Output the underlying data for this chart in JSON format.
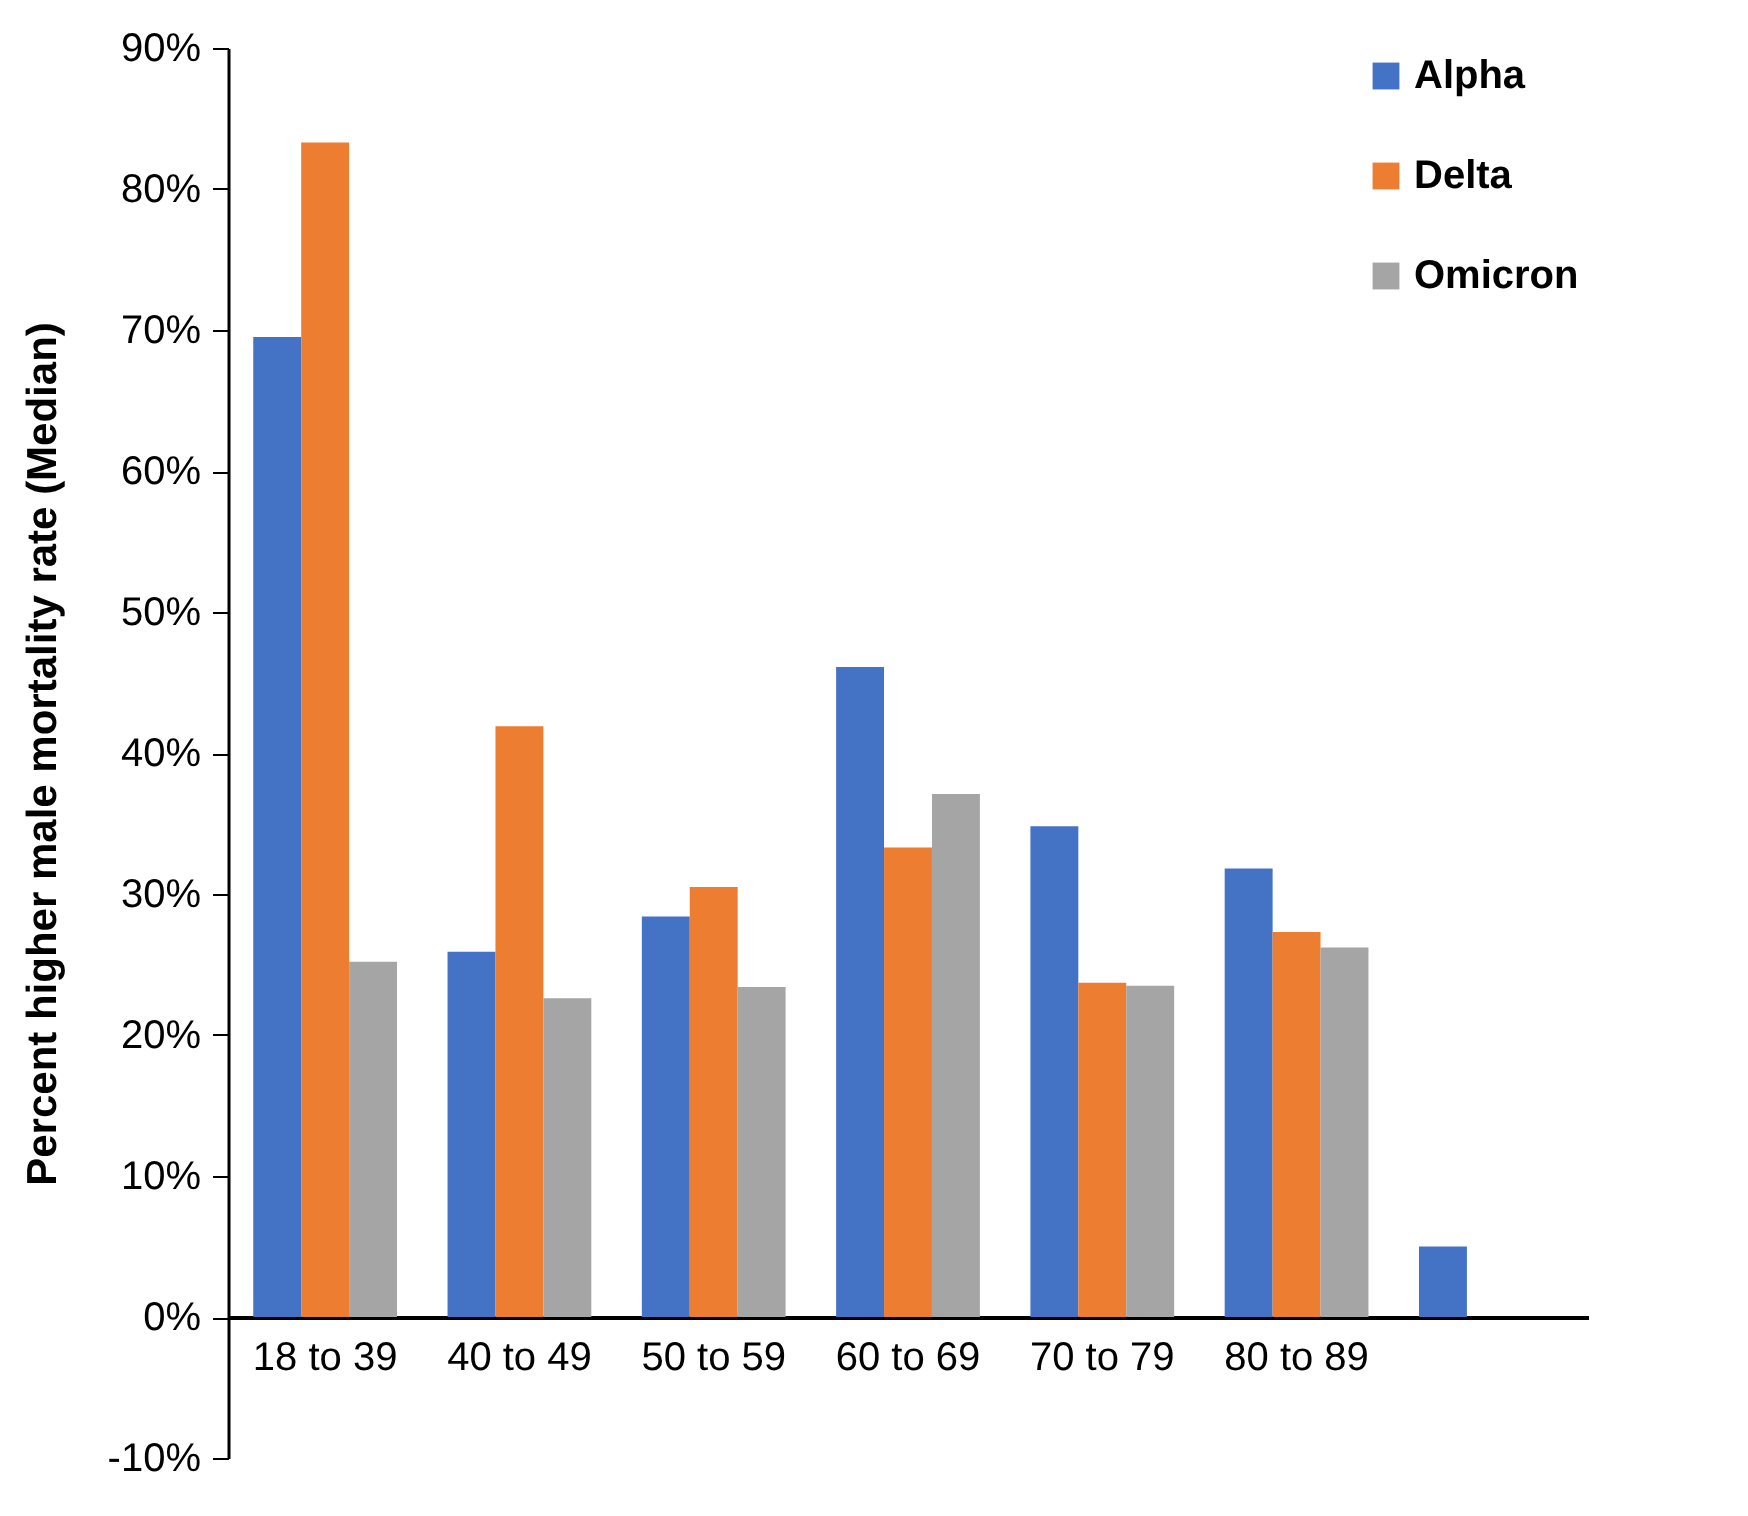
{
  "chart_data": {
    "type": "bar",
    "ylabel": "Percent higher male mortality rate (Median)",
    "categories": [
      "18 to 39",
      "40 to 49",
      "50 to 59",
      "60 to 69",
      "70 to 79",
      "80 to 89",
      null
    ],
    "series": [
      {
        "name": "Alpha",
        "color": "#4472c4",
        "values": [
          69.5,
          25.9,
          28.4,
          46.1,
          34.8,
          31.8,
          5.0
        ]
      },
      {
        "name": "Delta",
        "color": "#ed7d31",
        "values": [
          83.3,
          41.9,
          30.5,
          33.3,
          23.7,
          27.3,
          null
        ]
      },
      {
        "name": "Omicron",
        "color": "#a5a5a5",
        "values": [
          25.2,
          22.6,
          23.4,
          37.1,
          23.5,
          26.2,
          null
        ]
      }
    ],
    "ylim": [
      -10,
      90
    ],
    "yticks": [
      {
        "value": -10,
        "label": "-10%"
      },
      {
        "value": 0,
        "label": "0%"
      },
      {
        "value": 10,
        "label": "10%"
      },
      {
        "value": 20,
        "label": "20%"
      },
      {
        "value": 30,
        "label": "30%"
      },
      {
        "value": 40,
        "label": "40%"
      },
      {
        "value": 50,
        "label": "50%"
      },
      {
        "value": 60,
        "label": "60%"
      },
      {
        "value": 70,
        "label": "70%"
      },
      {
        "value": 80,
        "label": "80%"
      },
      {
        "value": 90,
        "label": "90%"
      }
    ],
    "grid": false,
    "legend": "top right"
  }
}
